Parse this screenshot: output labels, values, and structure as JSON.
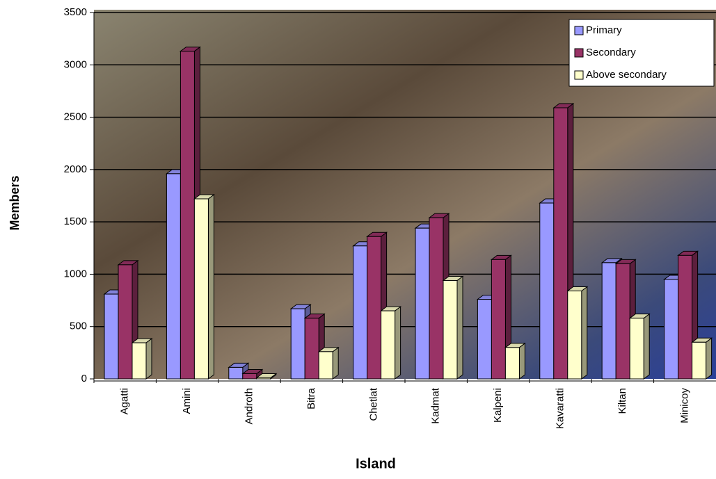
{
  "chart_data": {
    "type": "bar",
    "x_label": "Island",
    "y_label": "Members",
    "categories": [
      "Agatti",
      "Amini",
      "Androth",
      "Bitra",
      "Chetlat",
      "Kadmat",
      "Kalpeni",
      "Kavaratti",
      "Kiltan",
      "Minicoy"
    ],
    "series": [
      {
        "name": "Primary",
        "color": "#9999ff",
        "values": [
          810,
          1960,
          110,
          670,
          1270,
          1440,
          760,
          1680,
          1110,
          950
        ]
      },
      {
        "name": "Secondary",
        "color": "#993366",
        "values": [
          1090,
          3130,
          50,
          580,
          1360,
          1540,
          1140,
          2590,
          1100,
          1180
        ]
      },
      {
        "name": "Above secondary",
        "color": "#ffffcc",
        "values": [
          345,
          1720,
          10,
          260,
          650,
          940,
          300,
          840,
          580,
          350
        ]
      }
    ],
    "ylim": [
      0,
      3500
    ],
    "yticks": [
      0,
      500,
      1000,
      1500,
      2000,
      2500,
      3000,
      3500
    ],
    "grid": true,
    "legend": "upper right"
  }
}
